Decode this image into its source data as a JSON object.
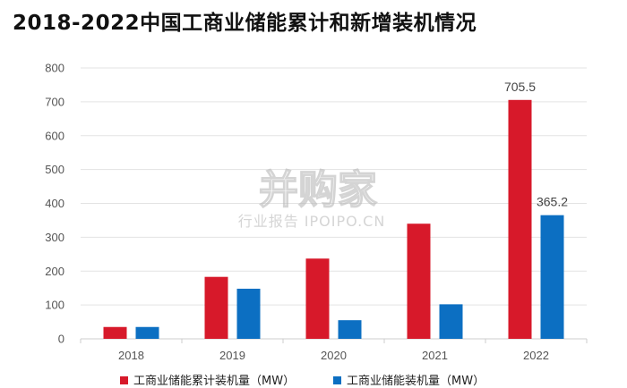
{
  "title": "2018-2022中国工商业储能累计和新增装机情况",
  "watermark": {
    "brand": "并购家",
    "subtitle": "行业报告 IPOIPO.CN"
  },
  "colors": {
    "cumulative": "#d7192a",
    "new": "#0c6fc2",
    "grid": "#e3e3e3",
    "axis": "#cccccc"
  },
  "chart_data": {
    "type": "bar",
    "categories": [
      "2018",
      "2019",
      "2020",
      "2021",
      "2022"
    ],
    "series": [
      {
        "name": "工商业储能累计装机量（MW）",
        "values": [
          35,
          183,
          237,
          340,
          705.5
        ]
      },
      {
        "name": "工商业储能装机量（MW）",
        "values": [
          35,
          148,
          55,
          102,
          365.2
        ]
      }
    ],
    "data_labels": [
      {
        "series": 0,
        "index": 4,
        "text": "705.5"
      },
      {
        "series": 1,
        "index": 4,
        "text": "365.2"
      }
    ],
    "ylim": [
      0,
      800
    ],
    "yticks": [
      0,
      100,
      200,
      300,
      400,
      500,
      600,
      700,
      800
    ],
    "grid": true,
    "legend": "bottom"
  }
}
